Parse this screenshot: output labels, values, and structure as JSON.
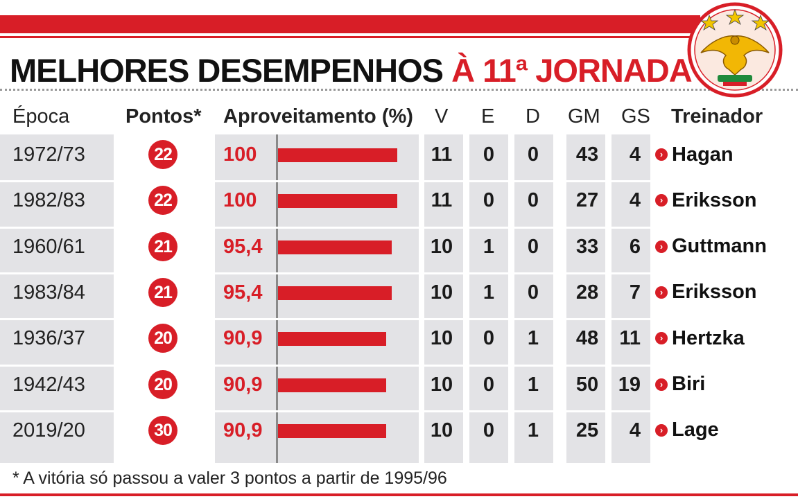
{
  "title": {
    "main": "MELHORES DESEMPENHOS",
    "accent": "À 11ª JORNADA"
  },
  "columns": {
    "season": "Época",
    "points": "Pontos*",
    "pct": "Aproveitamento (%)",
    "v": "V",
    "e": "E",
    "d": "D",
    "gm": "GM",
    "gs": "GS",
    "coach": "Treinador"
  },
  "rows": [
    {
      "season": "1972/73",
      "points": "22",
      "pct": "100",
      "v": "11",
      "e": "0",
      "d": "0",
      "gm": "43",
      "gs": "4",
      "coach": "Hagan"
    },
    {
      "season": "1982/83",
      "points": "22",
      "pct": "100",
      "v": "11",
      "e": "0",
      "d": "0",
      "gm": "27",
      "gs": "4",
      "coach": "Eriksson"
    },
    {
      "season": "1960/61",
      "points": "21",
      "pct": "95,4",
      "v": "10",
      "e": "1",
      "d": "0",
      "gm": "33",
      "gs": "6",
      "coach": "Guttmann"
    },
    {
      "season": "1983/84",
      "points": "21",
      "pct": "95,4",
      "v": "10",
      "e": "1",
      "d": "0",
      "gm": "28",
      "gs": "7",
      "coach": "Eriksson"
    },
    {
      "season": "1936/37",
      "points": "20",
      "pct": "90,9",
      "v": "10",
      "e": "0",
      "d": "1",
      "gm": "48",
      "gs": "11",
      "coach": "Hertzka"
    },
    {
      "season": "1942/43",
      "points": "20",
      "pct": "90,9",
      "v": "10",
      "e": "0",
      "d": "1",
      "gm": "50",
      "gs": "19",
      "coach": "Biri"
    },
    {
      "season": "2019/20",
      "points": "30",
      "pct": "90,9",
      "v": "10",
      "e": "0",
      "d": "1",
      "gm": "25",
      "gs": "4",
      "coach": "Lage"
    }
  ],
  "footnote": "* A vitória só passou a valer 3 pontos a partir de 1995/96",
  "chart_data": {
    "type": "bar",
    "categories": [
      "1972/73",
      "1982/83",
      "1960/61",
      "1983/84",
      "1936/37",
      "1942/43",
      "2019/20"
    ],
    "values": [
      100,
      100,
      95.4,
      95.4,
      90.9,
      90.9,
      90.9
    ],
    "title": "MELHORES DESEMPENHOS À 11ª JORNADA",
    "ylabel": "Aproveitamento (%)",
    "ylim": [
      0,
      100
    ]
  },
  "colors": {
    "accent": "#d81e27",
    "column_bg": "#e3e3e6",
    "text": "#1a1a1a"
  },
  "icons": {
    "coach_marker": "chevron-right-icon",
    "crest": "eagle-crest-icon"
  }
}
